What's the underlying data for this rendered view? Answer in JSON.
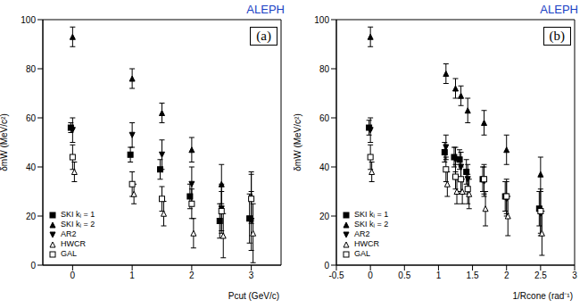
{
  "chart_data": [
    {
      "type": "scatter",
      "title": "ALEPH",
      "annotations": [
        "(a)"
      ],
      "x_label": "Pcut (GeV/c)",
      "y_label": "δmW (MeV/c²)",
      "xlim": [
        -0.5,
        3.5
      ],
      "xticks": [
        0,
        1,
        2,
        3
      ],
      "ylim": [
        0,
        100
      ],
      "yticks": [
        0,
        20,
        40,
        60,
        80,
        100
      ],
      "legend": "lower left",
      "series": [
        {
          "name": "SKI kᵢ = 1",
          "marker": "square",
          "color": "#000000",
          "x": [
            -0.03,
            0.97,
            1.47,
            1.97,
            2.47,
            2.97
          ],
          "values": [
            56,
            45,
            39,
            28,
            18,
            19
          ],
          "errors": [
            2,
            3,
            4,
            5,
            7,
            10
          ]
        },
        {
          "name": "SKI kᵢ = 2",
          "marker": "triangle-up",
          "color": "#000000",
          "x": [
            0,
            1,
            1.5,
            2,
            2.5,
            3
          ],
          "values": [
            93,
            76,
            62,
            47,
            33,
            28
          ],
          "errors": [
            4,
            4,
            4,
            5,
            8,
            10
          ]
        },
        {
          "name": "AR2",
          "marker": "triangle-down",
          "color": "#000000",
          "x": [
            0,
            1,
            1.5,
            2,
            2.5,
            3
          ],
          "values": [
            55,
            53,
            45,
            33,
            23,
            18
          ],
          "errors": [
            5,
            5,
            6,
            7,
            10,
            12
          ]
        },
        {
          "name": "HWCR",
          "marker": "open-triangle-up",
          "color": "#000000",
          "x": [
            0.03,
            1.03,
            1.53,
            2.03,
            2.53,
            3.03
          ],
          "values": [
            38,
            29,
            21,
            13,
            12,
            13
          ],
          "errors": [
            4,
            4,
            5,
            6,
            9,
            12
          ]
        },
        {
          "name": "GAL",
          "marker": "open-square",
          "color": "#000000",
          "x": [
            0,
            1,
            1.5,
            2,
            2.5,
            3
          ],
          "values": [
            44,
            33,
            27,
            25,
            22,
            27
          ],
          "errors": [
            5,
            5,
            5,
            6,
            8,
            10
          ]
        }
      ]
    },
    {
      "type": "scatter",
      "title": "ALEPH",
      "annotations": [
        "(b)"
      ],
      "x_label": "1/Rcone (rad⁻¹)",
      "y_label": "δmW (MeV/c²)",
      "xlim": [
        -0.5,
        3
      ],
      "xticks": [
        -0.5,
        0,
        0.5,
        1,
        1.5,
        2,
        2.5,
        3
      ],
      "ylim": [
        0,
        100
      ],
      "yticks": [
        0,
        20,
        40,
        60,
        80,
        100
      ],
      "legend": "lower left",
      "series": [
        {
          "name": "SKI kᵢ = 1",
          "marker": "square",
          "color": "#000000",
          "x": [
            -0.02,
            1.09,
            1.23,
            1.31,
            1.41,
            1.65,
            1.98,
            2.48
          ],
          "values": [
            56,
            46,
            44,
            43,
            38,
            35,
            28,
            23
          ],
          "errors": [
            3,
            4,
            4,
            4,
            5,
            5,
            6,
            7
          ]
        },
        {
          "name": "SKI kᵢ = 2",
          "marker": "triangle-up",
          "color": "#000000",
          "x": [
            0,
            1.11,
            1.25,
            1.33,
            1.43,
            1.67,
            2,
            2.5
          ],
          "values": [
            93,
            78,
            72,
            69,
            63,
            58,
            47,
            37
          ],
          "errors": [
            4,
            4,
            4,
            4,
            5,
            5,
            6,
            7
          ]
        },
        {
          "name": "AR2",
          "marker": "triangle-down",
          "color": "#000000",
          "x": [
            0,
            1.11,
            1.25,
            1.33,
            1.43,
            1.67,
            2,
            2.5
          ],
          "values": [
            55,
            48,
            43,
            40,
            35,
            34,
            27,
            21
          ],
          "errors": [
            5,
            5,
            5,
            6,
            6,
            6,
            7,
            9
          ]
        },
        {
          "name": "HWCR",
          "marker": "open-triangle-up",
          "color": "#000000",
          "x": [
            0.02,
            1.13,
            1.27,
            1.35,
            1.45,
            1.69,
            2.02,
            2.52
          ],
          "values": [
            38,
            33,
            30,
            30,
            29,
            23,
            20,
            13
          ],
          "errors": [
            4,
            5,
            5,
            5,
            6,
            7,
            8,
            9
          ]
        },
        {
          "name": "GAL",
          "marker": "open-square",
          "color": "#000000",
          "x": [
            0,
            1.11,
            1.25,
            1.33,
            1.43,
            1.67,
            2,
            2.5
          ],
          "values": [
            44,
            39,
            36,
            35,
            31,
            35,
            28,
            22
          ],
          "errors": [
            5,
            5,
            5,
            5,
            6,
            6,
            7,
            9
          ]
        }
      ]
    }
  ]
}
